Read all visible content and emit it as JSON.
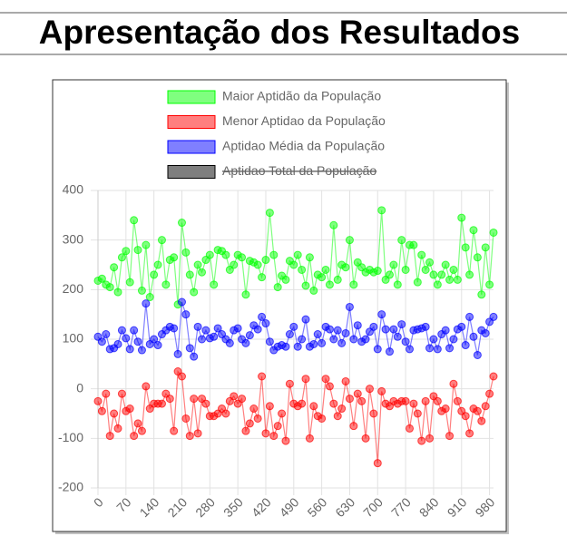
{
  "page_title": "Apresentação dos Resultados",
  "chart_data": {
    "type": "line",
    "x": [
      0,
      10,
      20,
      30,
      40,
      50,
      60,
      70,
      80,
      90,
      100,
      110,
      120,
      130,
      140,
      150,
      160,
      170,
      180,
      190,
      200,
      210,
      220,
      230,
      240,
      250,
      260,
      270,
      280,
      290,
      300,
      310,
      320,
      330,
      340,
      350,
      360,
      370,
      380,
      390,
      400,
      410,
      420,
      430,
      440,
      450,
      460,
      470,
      480,
      490,
      500,
      510,
      520,
      530,
      540,
      550,
      560,
      570,
      580,
      590,
      600,
      610,
      620,
      630,
      640,
      650,
      660,
      670,
      680,
      690,
      700,
      710,
      720,
      730,
      740,
      750,
      760,
      770,
      780,
      790,
      800,
      810,
      820,
      830,
      840,
      850,
      860,
      870,
      880,
      890,
      900,
      910,
      920,
      930,
      940,
      950,
      960,
      970,
      980,
      990
    ],
    "xlim": [
      0,
      990
    ],
    "xticks": [
      0,
      70,
      140,
      210,
      280,
      350,
      420,
      490,
      560,
      630,
      700,
      770,
      840,
      910,
      980
    ],
    "ylim": [
      -200,
      400
    ],
    "yticks": [
      -200,
      -100,
      0,
      100,
      200,
      300,
      400
    ],
    "grid": true,
    "series": [
      {
        "name": "Maior Aptidão da População",
        "color": "#00ff00",
        "values": [
          218,
          222,
          210,
          205,
          245,
          195,
          265,
          278,
          215,
          340,
          280,
          198,
          290,
          185,
          230,
          250,
          300,
          210,
          260,
          265,
          170,
          335,
          275,
          230,
          195,
          250,
          235,
          260,
          270,
          210,
          280,
          278,
          270,
          240,
          250,
          270,
          265,
          190,
          258,
          255,
          250,
          225,
          260,
          355,
          270,
          205,
          228,
          220,
          258,
          250,
          270,
          240,
          208,
          265,
          198,
          230,
          225,
          240,
          210,
          330,
          220,
          250,
          245,
          300,
          210,
          255,
          245,
          235,
          240,
          235,
          238,
          360,
          220,
          230,
          250,
          210,
          300,
          240,
          290,
          290,
          215,
          270,
          240,
          255,
          230,
          210,
          230,
          250,
          220,
          240,
          220,
          345,
          285,
          230,
          320,
          265,
          190,
          285,
          210,
          315
        ]
      },
      {
        "name": "Menor Aptidao da População",
        "color": "#ff0000",
        "values": [
          -25,
          -45,
          -10,
          -95,
          -50,
          -80,
          -10,
          -45,
          -40,
          -95,
          -70,
          -85,
          5,
          -40,
          -30,
          -30,
          -30,
          -10,
          -20,
          -85,
          35,
          25,
          -60,
          -95,
          -20,
          -90,
          -20,
          -30,
          -55,
          -55,
          -50,
          -40,
          -50,
          -25,
          -15,
          -30,
          -20,
          -85,
          -70,
          -40,
          -60,
          25,
          -90,
          -35,
          -95,
          -75,
          -50,
          -105,
          10,
          -30,
          -35,
          -30,
          20,
          -100,
          -35,
          -55,
          -60,
          20,
          5,
          -30,
          -55,
          -40,
          15,
          -20,
          -75,
          -10,
          -25,
          -100,
          0,
          -50,
          -150,
          -5,
          -30,
          -35,
          -25,
          -30,
          -25,
          -25,
          -80,
          -30,
          -50,
          -105,
          -25,
          -100,
          -15,
          -25,
          -45,
          -40,
          -95,
          10,
          -25,
          -45,
          -55,
          -90,
          -40,
          -45,
          -65,
          -35,
          -10,
          25
        ]
      },
      {
        "name": "Aptidao Média da População",
        "color": "#0000ff",
        "values": [
          105,
          95,
          110,
          80,
          82,
          90,
          118,
          102,
          80,
          118,
          95,
          78,
          172,
          90,
          100,
          88,
          110,
          118,
          125,
          122,
          70,
          175,
          150,
          82,
          65,
          125,
          100,
          118,
          102,
          105,
          122,
          110,
          100,
          92,
          118,
          122,
          100,
          92,
          108,
          128,
          120,
          145,
          132,
          95,
          78,
          85,
          88,
          85,
          110,
          125,
          85,
          100,
          140,
          85,
          90,
          110,
          92,
          125,
          120,
          100,
          118,
          92,
          112,
          165,
          100,
          128,
          95,
          100,
          115,
          125,
          80,
          150,
          120,
          75,
          120,
          105,
          130,
          95,
          80,
          118,
          120,
          122,
          125,
          82,
          100,
          80,
          110,
          118,
          82,
          100,
          120,
          125,
          88,
          145,
          105,
          68,
          118,
          112,
          135,
          145
        ]
      }
    ],
    "hidden_series": [
      {
        "name": "Aptidao Total da População",
        "color": "#000000"
      }
    ]
  }
}
